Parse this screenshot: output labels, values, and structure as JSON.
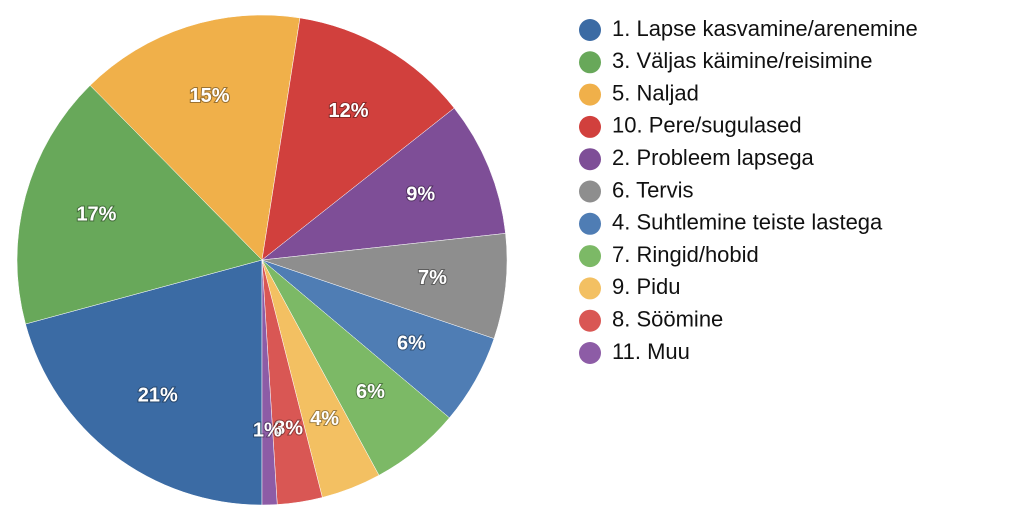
{
  "chart_data": {
    "type": "pie",
    "categories": [
      "1. Lapse kasvamine/arenemine",
      "3. Väljas käimine/reisimine",
      "5. Naljad",
      "10. Pere/sugulased",
      "2. Probleem lapsega",
      "6. Tervis",
      "4. Suhtlemine teiste lastega",
      "7. Ringid/hobid",
      "9. Pidu",
      "8. Söömine",
      "11. Muu"
    ],
    "values": [
      21,
      17,
      15,
      12,
      9,
      7,
      6,
      6,
      4,
      3,
      1
    ],
    "value_labels": [
      "21%",
      "17%",
      "15%",
      "12%",
      "9%",
      "7%",
      "6%",
      "6%",
      "4%",
      "3%",
      "1%"
    ],
    "colors": [
      "#3b6ba4",
      "#68a85a",
      "#f0b04a",
      "#d1403d",
      "#7e4e97",
      "#8e8e8e",
      "#4f7db4",
      "#7cb966",
      "#f3c062",
      "#d95754",
      "#8d5ca6"
    ]
  }
}
